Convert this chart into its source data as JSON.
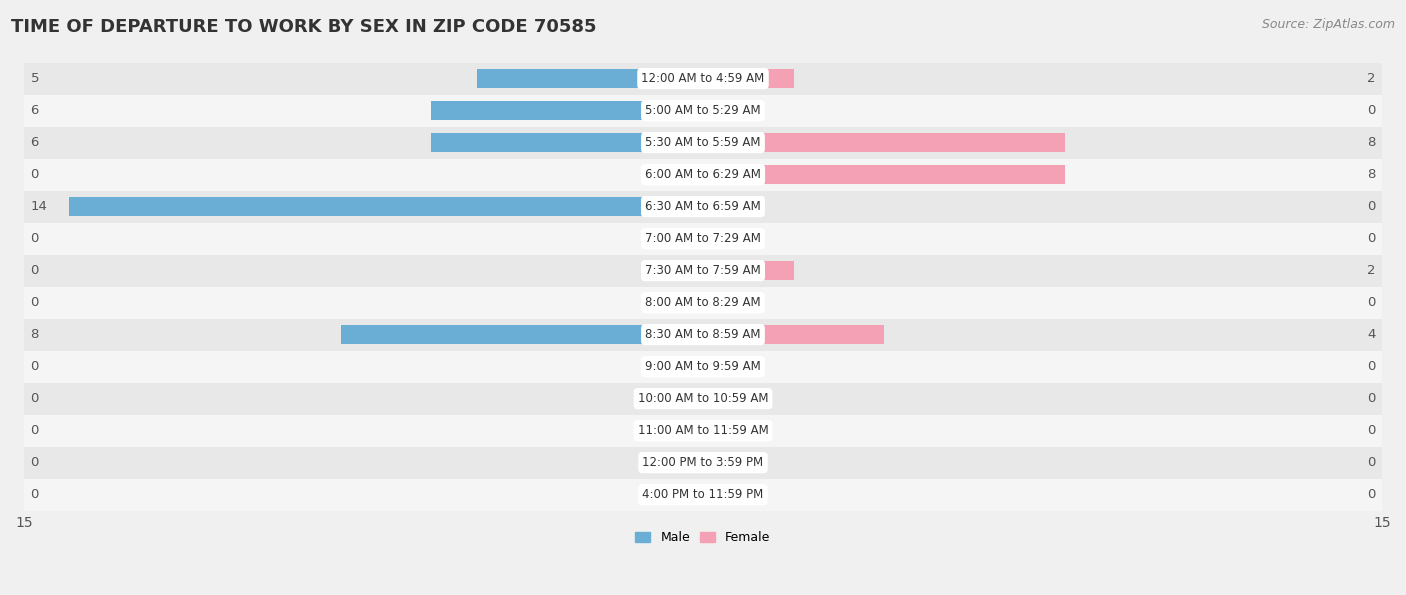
{
  "title": "TIME OF DEPARTURE TO WORK BY SEX IN ZIP CODE 70585",
  "source": "Source: ZipAtlas.com",
  "categories": [
    "12:00 AM to 4:59 AM",
    "5:00 AM to 5:29 AM",
    "5:30 AM to 5:59 AM",
    "6:00 AM to 6:29 AM",
    "6:30 AM to 6:59 AM",
    "7:00 AM to 7:29 AM",
    "7:30 AM to 7:59 AM",
    "8:00 AM to 8:29 AM",
    "8:30 AM to 8:59 AM",
    "9:00 AM to 9:59 AM",
    "10:00 AM to 10:59 AM",
    "11:00 AM to 11:59 AM",
    "12:00 PM to 3:59 PM",
    "4:00 PM to 11:59 PM"
  ],
  "male": [
    5,
    6,
    6,
    0,
    14,
    0,
    0,
    0,
    8,
    0,
    0,
    0,
    0,
    0
  ],
  "female": [
    2,
    0,
    8,
    8,
    0,
    0,
    2,
    0,
    4,
    0,
    0,
    0,
    0,
    0
  ],
  "male_color": "#6aaed6",
  "female_color": "#f4a0b5",
  "bar_height": 0.58,
  "xlim": 15,
  "background_color": "#f0f0f0",
  "row_color_odd": "#e8e8e8",
  "row_color_even": "#f5f5f5",
  "title_fontsize": 13,
  "source_fontsize": 9,
  "label_fontsize": 9.5,
  "category_fontsize": 8.5,
  "tick_fontsize": 10,
  "legend_fontsize": 9
}
